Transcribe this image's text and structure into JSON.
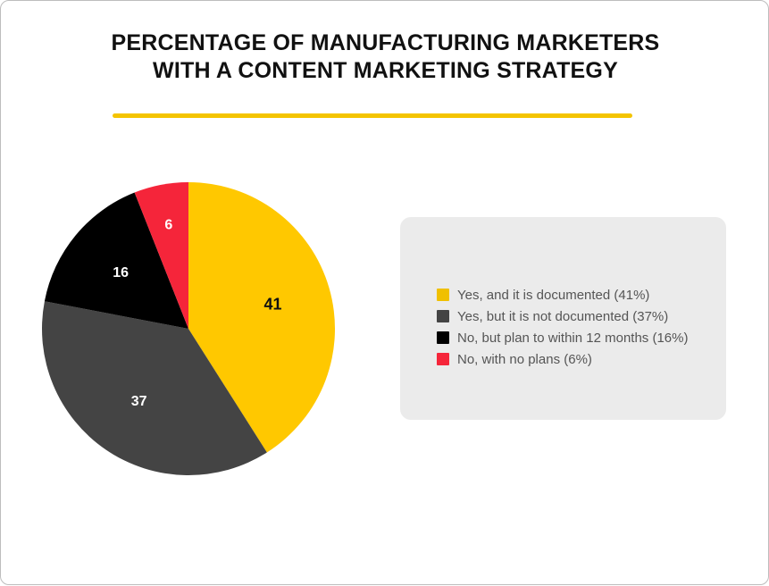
{
  "title_line1": "PERCENTAGE OF MANUFACTURING MARKETERS",
  "title_line2": "WITH A CONTENT MARKETING STRATEGY",
  "accent_color": "#F4C400",
  "chart_data": {
    "type": "pie",
    "title": "PERCENTAGE OF MANUFACTURING MARKETERS WITH A CONTENT MARKETING STRATEGY",
    "slices": [
      {
        "label": "Yes, and it is documented (41%)",
        "value": 41,
        "color": "#FFC800",
        "legend_color": "#F0C000",
        "label_color": "#111111"
      },
      {
        "label": "Yes, but it is not documented (37%)",
        "value": 37,
        "color": "#444444",
        "legend_color": "#444444",
        "label_color": "#ffffff"
      },
      {
        "label": "No, but plan to within 12 months (16%)",
        "value": 16,
        "color": "#000000",
        "legend_color": "#000000",
        "label_color": "#ffffff"
      },
      {
        "label": "No, with no plans (6%)",
        "value": 6,
        "color": "#F5253A",
        "legend_color": "#F5253A",
        "label_color": "#ffffff"
      }
    ],
    "legend_placement": "right"
  }
}
